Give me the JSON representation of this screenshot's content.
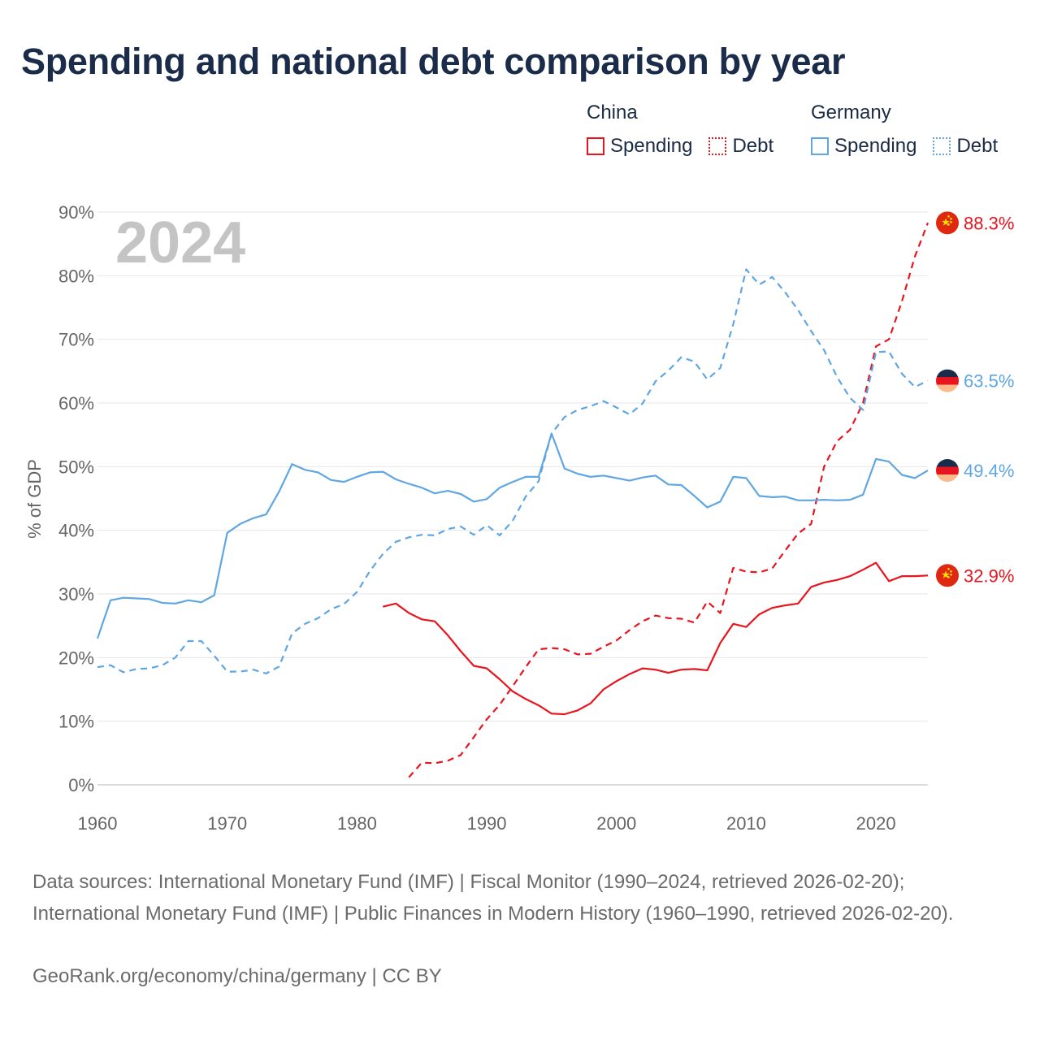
{
  "title": "Spending and national debt comparison by year",
  "legend": {
    "groups": [
      {
        "name": "China",
        "color": "#e8141e",
        "spending_label": "Spending",
        "debt_label": "Debt"
      },
      {
        "name": "Germany",
        "color": "#5fa6e3",
        "spending_label": "Spending",
        "debt_label": "Debt"
      }
    ]
  },
  "chart_data": {
    "type": "line",
    "title": "Spending and national debt comparison by year",
    "year_label": "2024",
    "xlabel": "",
    "ylabel": "% of GDP",
    "xlim": [
      1960,
      2024
    ],
    "ylim": [
      0,
      90
    ],
    "x_ticks": [
      "1960",
      "1970",
      "1980",
      "1990",
      "2000",
      "2010",
      "2020"
    ],
    "y_ticks": [
      "0%",
      "10%",
      "20%",
      "30%",
      "40%",
      "50%",
      "60%",
      "70%",
      "80%",
      "90%"
    ],
    "grid": true,
    "series": [
      {
        "name": "China Spending",
        "country": "China",
        "measure": "Spending",
        "color": "#e8141e",
        "dashed": false,
        "end_label": "32.9%",
        "x": [
          1982,
          1983,
          1984,
          1985,
          1986,
          1987,
          1988,
          1989,
          1990,
          1991,
          1992,
          1993,
          1994,
          1995,
          1996,
          1997,
          1998,
          1999,
          2000,
          2001,
          2002,
          2003,
          2004,
          2005,
          2006,
          2007,
          2008,
          2009,
          2010,
          2011,
          2012,
          2013,
          2014,
          2015,
          2016,
          2017,
          2018,
          2019,
          2020,
          2021,
          2022,
          2023,
          2024
        ],
        "y": [
          28.0,
          28.5,
          27.0,
          26.0,
          25.7,
          23.5,
          21.0,
          18.7,
          18.3,
          16.6,
          14.7,
          13.5,
          12.5,
          11.2,
          11.1,
          11.7,
          12.8,
          15.0,
          16.3,
          17.4,
          18.3,
          18.1,
          17.6,
          18.1,
          18.2,
          18.0,
          22.3,
          25.3,
          24.8,
          26.8,
          27.8,
          28.2,
          28.5,
          31.1,
          31.8,
          32.2,
          32.8,
          33.8,
          34.9,
          32.0,
          32.8,
          32.8,
          32.9
        ]
      },
      {
        "name": "China Debt",
        "country": "China",
        "measure": "Debt",
        "color": "#e8141e",
        "dashed": true,
        "end_label": "88.3%",
        "x": [
          1984,
          1985,
          1986,
          1987,
          1988,
          1989,
          1990,
          1991,
          1992,
          1993,
          1994,
          1995,
          1996,
          1997,
          1998,
          1999,
          2000,
          2001,
          2002,
          2003,
          2004,
          2005,
          2006,
          2007,
          2008,
          2009,
          2010,
          2011,
          2012,
          2013,
          2014,
          2015,
          2016,
          2017,
          2018,
          2019,
          2020,
          2021,
          2022,
          2023,
          2024
        ],
        "y": [
          1.2,
          3.5,
          3.4,
          3.8,
          4.7,
          7.5,
          10.3,
          12.6,
          15.5,
          18.5,
          21.3,
          21.5,
          21.3,
          20.5,
          20.6,
          21.7,
          22.7,
          24.3,
          25.7,
          26.6,
          26.2,
          26.1,
          25.5,
          28.8,
          27.0,
          34.1,
          33.5,
          33.4,
          34.0,
          36.8,
          39.5,
          41.0,
          50.0,
          54.0,
          55.8,
          60.0,
          68.9,
          70.0,
          76.0,
          83.0,
          88.3
        ]
      },
      {
        "name": "Germany Spending",
        "country": "Germany",
        "measure": "Spending",
        "color": "#5fa6e3",
        "dashed": false,
        "end_label": "49.4%",
        "x": [
          1960,
          1961,
          1962,
          1963,
          1964,
          1965,
          1966,
          1967,
          1968,
          1969,
          1970,
          1971,
          1972,
          1973,
          1974,
          1975,
          1976,
          1977,
          1978,
          1979,
          1980,
          1981,
          1982,
          1983,
          1984,
          1985,
          1986,
          1987,
          1988,
          1989,
          1990,
          1991,
          1992,
          1993,
          1994,
          1995,
          1996,
          1997,
          1998,
          1999,
          2000,
          2001,
          2002,
          2003,
          2004,
          2005,
          2006,
          2007,
          2008,
          2009,
          2010,
          2011,
          2012,
          2013,
          2014,
          2015,
          2016,
          2017,
          2018,
          2019,
          2020,
          2021,
          2022,
          2023,
          2024
        ],
        "y": [
          23.0,
          29.0,
          29.4,
          29.3,
          29.2,
          28.6,
          28.5,
          29.0,
          28.7,
          29.8,
          39.6,
          41.0,
          41.9,
          42.5,
          46.1,
          50.4,
          49.5,
          49.1,
          47.9,
          47.6,
          48.4,
          49.1,
          49.2,
          48.0,
          47.3,
          46.7,
          45.8,
          46.2,
          45.7,
          44.5,
          44.9,
          46.7,
          47.6,
          48.4,
          48.4,
          55.2,
          49.7,
          48.9,
          48.4,
          48.6,
          48.2,
          47.8,
          48.3,
          48.6,
          47.2,
          47.1,
          45.4,
          43.6,
          44.5,
          48.4,
          48.2,
          45.4,
          45.2,
          45.3,
          44.7,
          44.7,
          44.8,
          44.7,
          44.8,
          45.6,
          51.2,
          50.8,
          48.7,
          48.2,
          49.4
        ]
      },
      {
        "name": "Germany Debt",
        "country": "Germany",
        "measure": "Debt",
        "color": "#5fa6e3",
        "dashed": true,
        "end_label": "63.5%",
        "x": [
          1960,
          1961,
          1962,
          1963,
          1964,
          1965,
          1966,
          1967,
          1968,
          1969,
          1970,
          1971,
          1972,
          1973,
          1974,
          1975,
          1976,
          1977,
          1978,
          1979,
          1980,
          1981,
          1982,
          1983,
          1984,
          1985,
          1986,
          1987,
          1988,
          1989,
          1990,
          1991,
          1992,
          1993,
          1994,
          1995,
          1996,
          1997,
          1998,
          1999,
          2000,
          2001,
          2002,
          2003,
          2004,
          2005,
          2006,
          2007,
          2008,
          2009,
          2010,
          2011,
          2012,
          2013,
          2014,
          2015,
          2016,
          2017,
          2018,
          2019,
          2020,
          2021,
          2022,
          2023,
          2024
        ],
        "y": [
          18.5,
          18.8,
          17.7,
          18.2,
          18.3,
          18.8,
          20.0,
          22.6,
          22.6,
          20.3,
          17.8,
          17.8,
          18.1,
          17.5,
          18.6,
          23.8,
          25.3,
          26.2,
          27.6,
          28.4,
          30.3,
          33.6,
          36.3,
          38.2,
          38.9,
          39.3,
          39.2,
          40.2,
          40.6,
          39.3,
          40.8,
          39.2,
          41.5,
          45.3,
          47.7,
          55.2,
          57.8,
          58.9,
          59.5,
          60.3,
          59.3,
          58.2,
          59.9,
          63.4,
          65.1,
          67.2,
          66.5,
          63.7,
          65.5,
          72.4,
          81.0,
          78.6,
          79.8,
          77.4,
          74.6,
          71.3,
          68.3,
          64.1,
          60.8,
          58.9,
          68.0,
          68.1,
          64.6,
          62.5,
          63.5
        ]
      }
    ]
  },
  "source_text": "Data sources: International Monetary Fund (IMF) | Fiscal Monitor (1990–2024, retrieved 2026-02-20); International Monetary Fund (IMF) | Public Finances in Modern History (1960–1990, retrieved 2026-02-20).",
  "credit_text": "GeoRank.org/economy/china/germany | CC BY"
}
